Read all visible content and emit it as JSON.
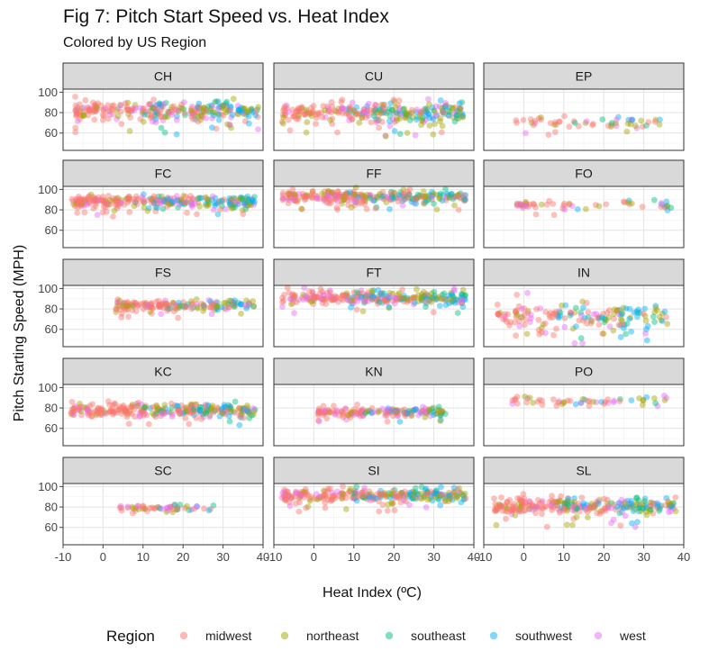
{
  "title": "Fig 7: Pitch Start Speed vs. Heat Index",
  "subtitle": "Colored by US Region",
  "chart_data": {
    "type": "scatter",
    "xlabel": "Heat Index (ºC)",
    "ylabel": "Pitch Starting Speed (MPH)",
    "xlim": [
      -10,
      40
    ],
    "ylim": [
      43,
      103
    ],
    "x_ticks": [
      -10,
      0,
      10,
      20,
      30,
      40
    ],
    "x_tick_labels": [
      "-10",
      "0",
      "10",
      "20",
      "30",
      "40"
    ],
    "y_ticks": [
      60,
      80,
      100
    ],
    "y_tick_labels": [
      "60",
      "80",
      "100"
    ],
    "grid": true,
    "legend": {
      "title": "Region",
      "position": "bottom",
      "entries": [
        {
          "name": "midwest",
          "color": "#F8766D"
        },
        {
          "name": "northeast",
          "color": "#A3A500"
        },
        {
          "name": "southeast",
          "color": "#00BF7D"
        },
        {
          "name": "southwest",
          "color": "#00B0F6"
        },
        {
          "name": "west",
          "color": "#E76BF3"
        }
      ]
    },
    "facets": [
      {
        "label": "CH",
        "x_range": [
          -7,
          39
        ],
        "y_center": 82,
        "y_spread": 9,
        "density": "high"
      },
      {
        "label": "CU",
        "x_range": [
          -8,
          38
        ],
        "y_center": 80,
        "y_spread": 9,
        "density": "high"
      },
      {
        "label": "EP",
        "x_range": [
          -2,
          35
        ],
        "y_center": 70,
        "y_spread": 5,
        "density": "low"
      },
      {
        "label": "FC",
        "x_range": [
          -8,
          38
        ],
        "y_center": 88,
        "y_spread": 6,
        "density": "high"
      },
      {
        "label": "FF",
        "x_range": [
          -8,
          38
        ],
        "y_center": 93,
        "y_spread": 5,
        "density": "high"
      },
      {
        "label": "FO",
        "x_range": [
          -2,
          37
        ],
        "y_center": 85,
        "y_spread": 4,
        "density": "low"
      },
      {
        "label": "FS",
        "x_range": [
          3,
          38
        ],
        "y_center": 84,
        "y_spread": 5,
        "density": "medium"
      },
      {
        "label": "FT",
        "x_range": [
          -8,
          38
        ],
        "y_center": 91,
        "y_spread": 6,
        "density": "high"
      },
      {
        "label": "IN",
        "x_range": [
          -7,
          36
        ],
        "y_center": 72,
        "y_spread": 12,
        "density": "medium"
      },
      {
        "label": "KC",
        "x_range": [
          -8,
          38
        ],
        "y_center": 78,
        "y_spread": 6,
        "density": "high"
      },
      {
        "label": "KN",
        "x_range": [
          1,
          33
        ],
        "y_center": 76,
        "y_spread": 4,
        "density": "medium"
      },
      {
        "label": "PO",
        "x_range": [
          -4,
          36
        ],
        "y_center": 87,
        "y_spread": 4,
        "density": "low"
      },
      {
        "label": "SC",
        "x_range": [
          4,
          28
        ],
        "y_center": 79,
        "y_spread": 2,
        "density": "low"
      },
      {
        "label": "SI",
        "x_range": [
          -8,
          38
        ],
        "y_center": 91,
        "y_spread": 6,
        "density": "high"
      },
      {
        "label": "SL",
        "x_range": [
          -8,
          38
        ],
        "y_center": 81,
        "y_spread": 8,
        "density": "high"
      }
    ]
  }
}
